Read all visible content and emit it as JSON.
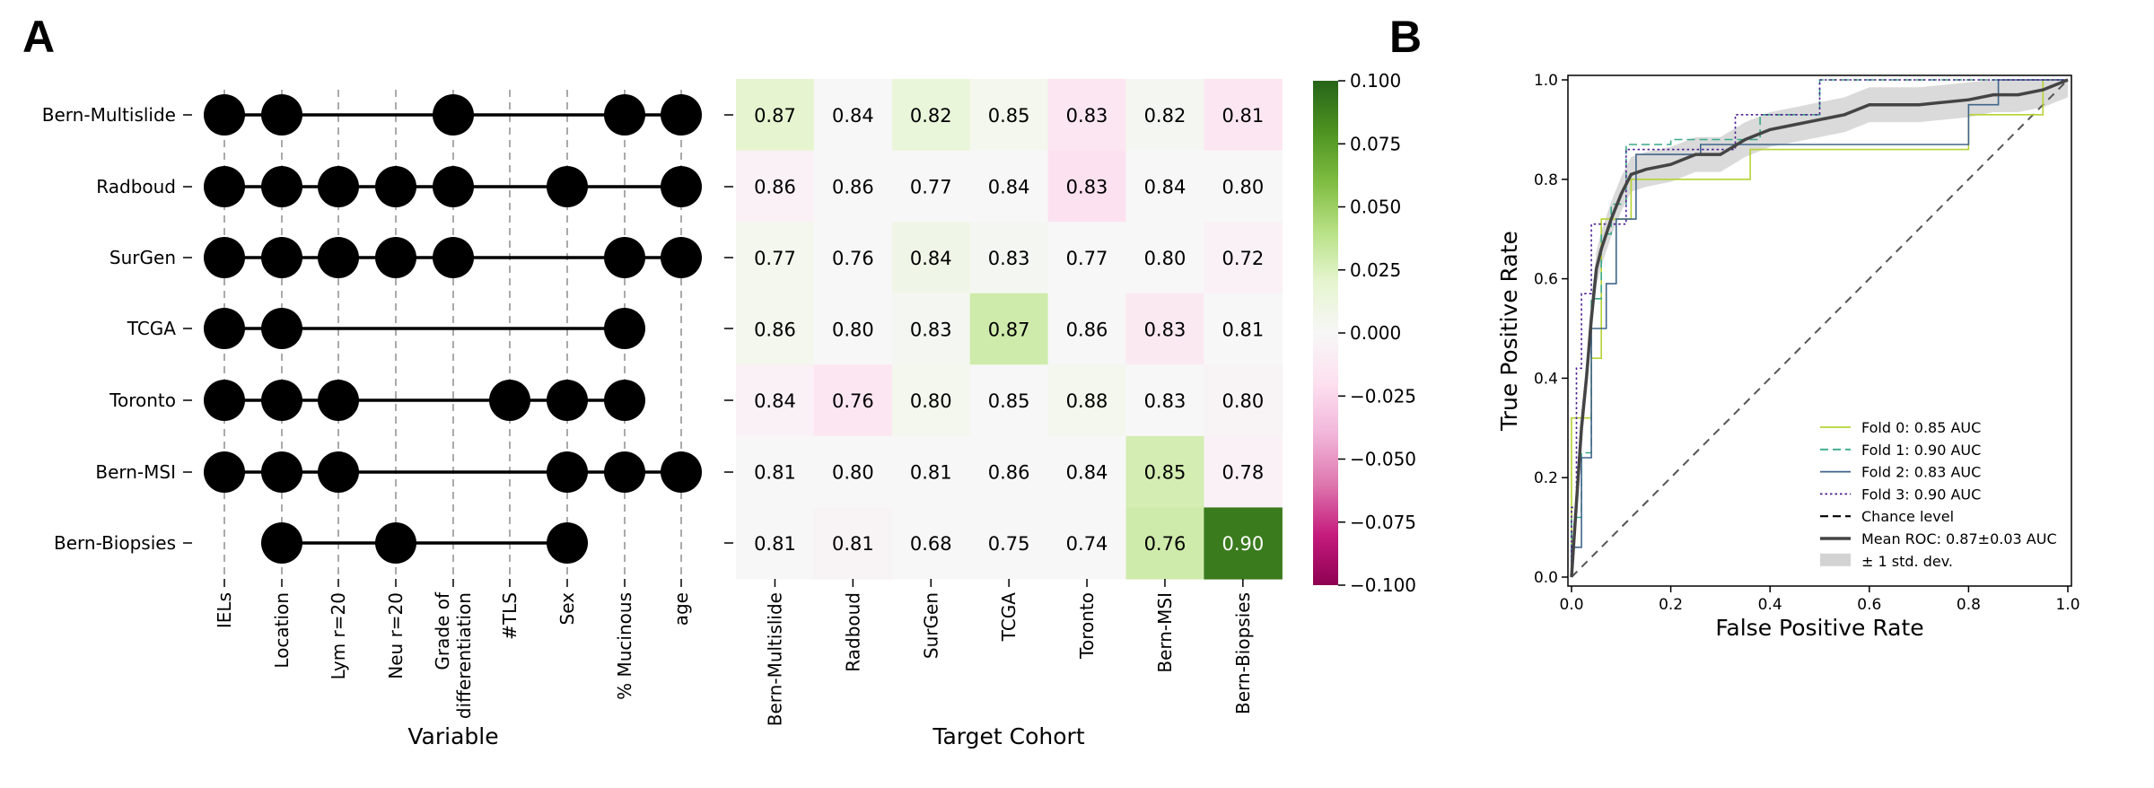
{
  "panels": {
    "a": "A",
    "b": "B"
  },
  "chart_data": [
    {
      "type": "dot-matrix",
      "xlabel": "Variable",
      "rows": [
        "Bern-Multislide",
        "Radboud",
        "SurGen",
        "TCGA",
        "Toronto",
        "Bern-MSI",
        "Bern-Biopsies"
      ],
      "columns": [
        "IELs",
        "Location",
        "Lym r=20",
        "Neu r=20",
        "Grade of\ndifferentiation",
        "#TLS",
        "Sex",
        "% Mucinous",
        "age"
      ],
      "selected": [
        [
          1,
          1,
          0,
          0,
          1,
          0,
          0,
          1,
          1
        ],
        [
          1,
          1,
          1,
          1,
          1,
          0,
          1,
          0,
          1
        ],
        [
          1,
          1,
          1,
          1,
          1,
          0,
          0,
          1,
          1
        ],
        [
          1,
          1,
          0,
          0,
          0,
          0,
          0,
          1,
          0
        ],
        [
          1,
          1,
          1,
          0,
          0,
          1,
          1,
          1,
          0
        ],
        [
          1,
          1,
          1,
          0,
          0,
          0,
          1,
          1,
          1
        ],
        [
          0,
          1,
          0,
          1,
          0,
          0,
          1,
          0,
          0
        ]
      ]
    },
    {
      "type": "heatmap",
      "xlabel": "Target Cohort",
      "x": [
        "Bern-Multislide",
        "Radboud",
        "SurGen",
        "TCGA",
        "Toronto",
        "Bern-MSI",
        "Bern-Biopsies"
      ],
      "values": [
        [
          0.87,
          0.84,
          0.82,
          0.85,
          0.83,
          0.82,
          0.81
        ],
        [
          0.86,
          0.86,
          0.77,
          0.84,
          0.83,
          0.84,
          0.8
        ],
        [
          0.77,
          0.76,
          0.84,
          0.83,
          0.77,
          0.8,
          0.72
        ],
        [
          0.86,
          0.8,
          0.83,
          0.87,
          0.86,
          0.83,
          0.81
        ],
        [
          0.84,
          0.76,
          0.8,
          0.85,
          0.88,
          0.83,
          0.8
        ],
        [
          0.81,
          0.8,
          0.81,
          0.86,
          0.84,
          0.85,
          0.78
        ],
        [
          0.81,
          0.81,
          0.68,
          0.75,
          0.74,
          0.76,
          0.9
        ]
      ],
      "color_deviation": [
        [
          0.02,
          0.0,
          0.015,
          0.005,
          -0.015,
          0.003,
          -0.015
        ],
        [
          -0.005,
          0.0,
          0.0,
          0.0,
          -0.018,
          0.0,
          0.0
        ],
        [
          0.005,
          0.0,
          0.008,
          0.003,
          0.0,
          0.0,
          -0.005
        ],
        [
          0.005,
          0.0,
          0.003,
          0.03,
          0.0,
          -0.012,
          0.0
        ],
        [
          -0.005,
          -0.015,
          0.005,
          0.0,
          0.005,
          0.0,
          -0.003
        ],
        [
          0.0,
          0.0,
          0.0,
          0.0,
          0.0,
          0.028,
          -0.005
        ],
        [
          0.0,
          -0.003,
          0.0,
          0.0,
          0.0,
          0.03,
          0.09
        ]
      ],
      "colorbar": {
        "range": [
          -0.1,
          0.1
        ],
        "ticks": [
          "0.100",
          "0.075",
          "0.050",
          "0.025",
          "0.000",
          "−0.025",
          "−0.050",
          "−0.075",
          "−0.100"
        ],
        "tick_values": [
          0.1,
          0.075,
          0.05,
          0.025,
          0.0,
          -0.025,
          -0.05,
          -0.075,
          -0.1
        ]
      }
    },
    {
      "type": "line",
      "xlabel": "False Positive Rate",
      "ylabel": "True Positive Rate",
      "xlim": [
        0,
        1
      ],
      "ylim": [
        0,
        1
      ],
      "ticks": [
        "0.0",
        "0.2",
        "0.4",
        "0.6",
        "0.8",
        "1.0"
      ],
      "tick_values": [
        0.0,
        0.2,
        0.4,
        0.6,
        0.8,
        1.0
      ],
      "legend_position": "lower-right",
      "series": [
        {
          "name": "Fold 0: 0.85 AUC",
          "color": "#b5d334",
          "style": "solid",
          "points": [
            [
              0,
              0
            ],
            [
              0,
              0.32
            ],
            [
              0.04,
              0.32
            ],
            [
              0.04,
              0.44
            ],
            [
              0.06,
              0.44
            ],
            [
              0.06,
              0.72
            ],
            [
              0.12,
              0.72
            ],
            [
              0.12,
              0.8
            ],
            [
              0.36,
              0.8
            ],
            [
              0.36,
              0.86
            ],
            [
              0.8,
              0.86
            ],
            [
              0.8,
              0.93
            ],
            [
              0.95,
              0.93
            ],
            [
              0.95,
              1
            ],
            [
              1,
              1
            ]
          ]
        },
        {
          "name": "Fold 1: 0.90 AUC",
          "color": "#3aa98a",
          "style": "dashed",
          "points": [
            [
              0,
              0
            ],
            [
              0,
              0.12
            ],
            [
              0.02,
              0.12
            ],
            [
              0.02,
              0.25
            ],
            [
              0.04,
              0.25
            ],
            [
              0.04,
              0.56
            ],
            [
              0.06,
              0.56
            ],
            [
              0.06,
              0.69
            ],
            [
              0.08,
              0.69
            ],
            [
              0.08,
              0.75
            ],
            [
              0.11,
              0.75
            ],
            [
              0.11,
              0.87
            ],
            [
              0.2,
              0.87
            ],
            [
              0.2,
              0.88
            ],
            [
              0.38,
              0.88
            ],
            [
              0.38,
              0.93
            ],
            [
              0.5,
              0.93
            ],
            [
              0.5,
              1
            ],
            [
              1,
              1
            ]
          ]
        },
        {
          "name": "Fold 2: 0.83 AUC",
          "color": "#40658a",
          "style": "solid",
          "points": [
            [
              0,
              0
            ],
            [
              0,
              0.06
            ],
            [
              0.02,
              0.06
            ],
            [
              0.02,
              0.24
            ],
            [
              0.04,
              0.24
            ],
            [
              0.04,
              0.5
            ],
            [
              0.07,
              0.5
            ],
            [
              0.07,
              0.59
            ],
            [
              0.09,
              0.59
            ],
            [
              0.09,
              0.72
            ],
            [
              0.13,
              0.72
            ],
            [
              0.13,
              0.85
            ],
            [
              0.26,
              0.85
            ],
            [
              0.26,
              0.87
            ],
            [
              0.8,
              0.87
            ],
            [
              0.8,
              0.95
            ],
            [
              0.86,
              0.95
            ],
            [
              0.86,
              1
            ],
            [
              1,
              1
            ]
          ]
        },
        {
          "name": "Fold 3: 0.90 AUC",
          "color": "#4b1d91",
          "style": "dotted",
          "points": [
            [
              0,
              0
            ],
            [
              0,
              0.14
            ],
            [
              0.01,
              0.14
            ],
            [
              0.01,
              0.42
            ],
            [
              0.02,
              0.42
            ],
            [
              0.02,
              0.57
            ],
            [
              0.04,
              0.57
            ],
            [
              0.04,
              0.71
            ],
            [
              0.11,
              0.71
            ],
            [
              0.11,
              0.86
            ],
            [
              0.33,
              0.86
            ],
            [
              0.33,
              0.93
            ],
            [
              0.5,
              0.93
            ],
            [
              0.5,
              1
            ],
            [
              1,
              1
            ]
          ]
        },
        {
          "name": "Chance level",
          "color": "#000000",
          "style": "dashed",
          "legend_only": true
        },
        {
          "name": "Mean ROC: 0.87±0.03 AUC",
          "color": "#444444",
          "style": "solid",
          "points": [
            [
              0,
              0
            ],
            [
              0.01,
              0.15
            ],
            [
              0.02,
              0.3
            ],
            [
              0.03,
              0.4
            ],
            [
              0.04,
              0.52
            ],
            [
              0.05,
              0.62
            ],
            [
              0.06,
              0.66
            ],
            [
              0.08,
              0.72
            ],
            [
              0.1,
              0.77
            ],
            [
              0.12,
              0.81
            ],
            [
              0.15,
              0.82
            ],
            [
              0.2,
              0.83
            ],
            [
              0.25,
              0.85
            ],
            [
              0.3,
              0.85
            ],
            [
              0.35,
              0.88
            ],
            [
              0.4,
              0.9
            ],
            [
              0.45,
              0.91
            ],
            [
              0.5,
              0.92
            ],
            [
              0.55,
              0.93
            ],
            [
              0.6,
              0.95
            ],
            [
              0.7,
              0.95
            ],
            [
              0.8,
              0.96
            ],
            [
              0.85,
              0.97
            ],
            [
              0.9,
              0.97
            ],
            [
              0.95,
              0.98
            ],
            [
              1,
              1
            ]
          ]
        },
        {
          "name": "± 1 std. dev.",
          "color": "#d3d3d3",
          "style": "band",
          "halfwidth": 0.035
        }
      ]
    }
  ]
}
